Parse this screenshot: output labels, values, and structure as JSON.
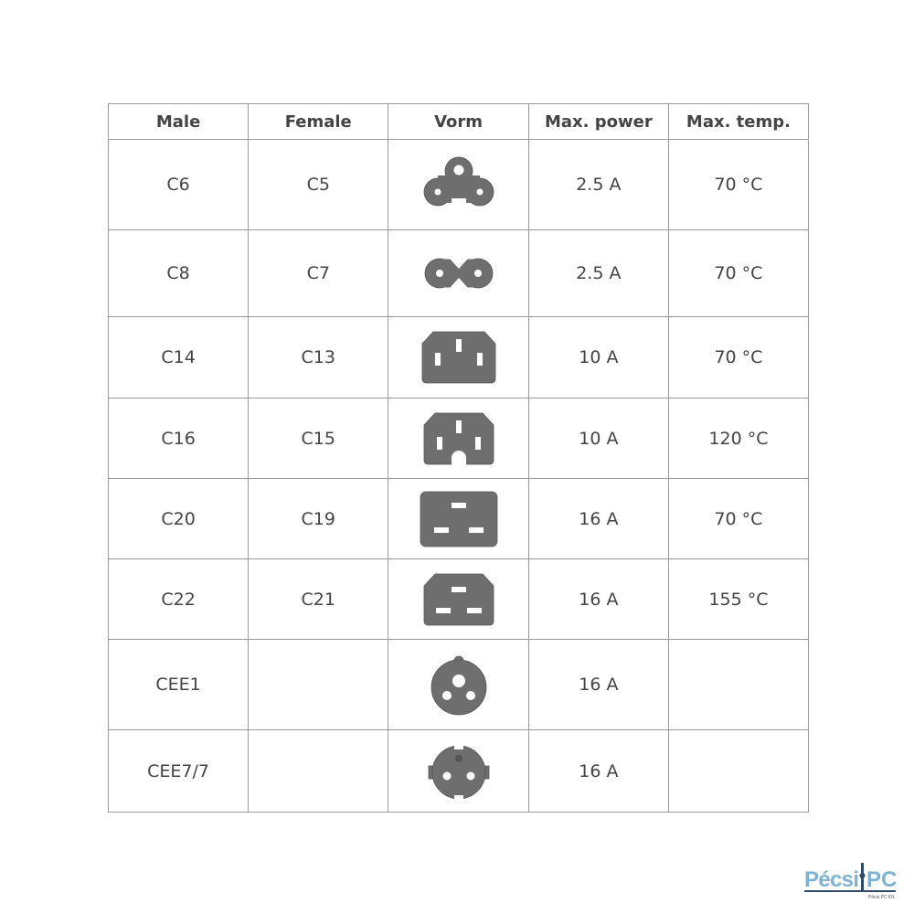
{
  "headers": [
    "Male",
    "Female",
    "Vorm",
    "Max. power",
    "Max. temp."
  ],
  "rows": [
    {
      "male": "C6",
      "female": "C5",
      "shape": "c5-cloverleaf-icon",
      "power": "2.5 A",
      "temp": "70 °C"
    },
    {
      "male": "C8",
      "female": "C7",
      "shape": "c7-figure-eight-icon",
      "power": "2.5 A",
      "temp": "70 °C"
    },
    {
      "male": "C14",
      "female": "C13",
      "shape": "c13-icon",
      "power": "10 A",
      "temp": "70 °C"
    },
    {
      "male": "C16",
      "female": "C15",
      "shape": "c15-icon",
      "power": "10 A",
      "temp": "120 °C"
    },
    {
      "male": "C20",
      "female": "C19",
      "shape": "c19-icon",
      "power": "16 A",
      "temp": "70 °C"
    },
    {
      "male": "C22",
      "female": "C21",
      "shape": "c21-icon",
      "power": "16 A",
      "temp": "155 °C"
    },
    {
      "male": "CEE1",
      "female": "",
      "shape": "cee1-icon",
      "power": "16 A",
      "temp": ""
    },
    {
      "male": "CEE7/7",
      "female": "",
      "shape": "cee7-7-icon",
      "power": "16 A",
      "temp": ""
    }
  ],
  "colors": {
    "shape": "#6e6e6e",
    "border": "#9a9a9a",
    "logo": "#7fb3d3"
  },
  "logo": {
    "text": "PécsiPC",
    "subtext": "Pécsi PC Kft."
  }
}
